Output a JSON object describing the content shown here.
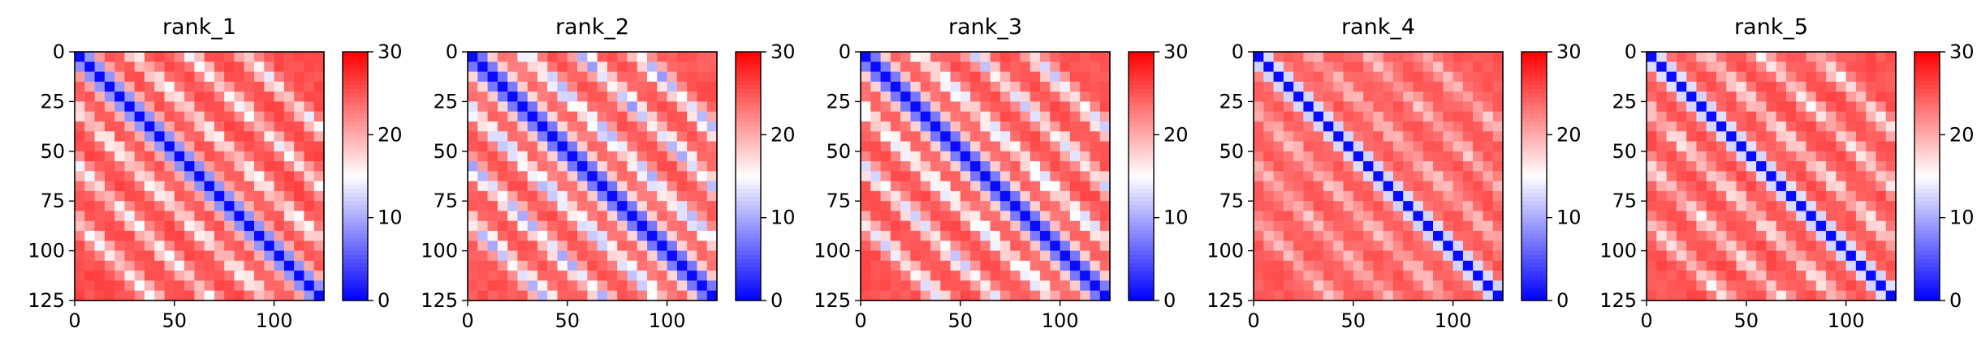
{
  "chart_data": [
    {
      "type": "heatmap",
      "title": "rank_1",
      "xlim": [
        0,
        125
      ],
      "ylim": [
        125,
        0
      ],
      "xticks": [
        0,
        50,
        100
      ],
      "yticks": [
        0,
        25,
        50,
        75,
        100,
        125
      ],
      "colorbar": {
        "range": [
          0,
          30
        ],
        "ticks": [
          0,
          10,
          20,
          30
        ],
        "colors": [
          "#0000ff",
          "#ffffff",
          "#ff0000"
        ]
      },
      "diagonal_band": 8,
      "contact_bands": [
        28,
        56,
        84
      ],
      "contact_strength": 0.55,
      "background": 0.88
    },
    {
      "type": "heatmap",
      "title": "rank_2",
      "xlim": [
        0,
        125
      ],
      "ylim": [
        125,
        0
      ],
      "xticks": [
        0,
        50,
        100
      ],
      "yticks": [
        0,
        25,
        50,
        75,
        100,
        125
      ],
      "colorbar": {
        "range": [
          0,
          30
        ],
        "ticks": [
          0,
          10,
          20,
          30
        ],
        "colors": [
          "#0000ff",
          "#ffffff",
          "#ff0000"
        ]
      },
      "diagonal_band": 9,
      "contact_bands": [
        28,
        56,
        84
      ],
      "contact_strength": 0.75,
      "background": 0.86
    },
    {
      "type": "heatmap",
      "title": "rank_3",
      "xlim": [
        0,
        125
      ],
      "ylim": [
        125,
        0
      ],
      "xticks": [
        0,
        50,
        100
      ],
      "yticks": [
        0,
        25,
        50,
        75,
        100,
        125
      ],
      "colorbar": {
        "range": [
          0,
          30
        ],
        "ticks": [
          0,
          10,
          20,
          30
        ],
        "colors": [
          "#0000ff",
          "#ffffff",
          "#ff0000"
        ]
      },
      "diagonal_band": 9,
      "contact_bands": [
        28,
        56,
        84
      ],
      "contact_strength": 0.65,
      "background": 0.87
    },
    {
      "type": "heatmap",
      "title": "rank_4",
      "xlim": [
        0,
        125
      ],
      "ylim": [
        125,
        0
      ],
      "xticks": [
        0,
        50,
        100
      ],
      "yticks": [
        0,
        25,
        50,
        75,
        100,
        125
      ],
      "colorbar": {
        "range": [
          0,
          30
        ],
        "ticks": [
          0,
          10,
          20,
          30
        ],
        "colors": [
          "#0000ff",
          "#ffffff",
          "#ff0000"
        ]
      },
      "diagonal_band": 6,
      "contact_bands": [
        28,
        56,
        84
      ],
      "contact_strength": 0.3,
      "background": 0.85
    },
    {
      "type": "heatmap",
      "title": "rank_5",
      "xlim": [
        0,
        125
      ],
      "ylim": [
        125,
        0
      ],
      "xticks": [
        0,
        50,
        100
      ],
      "yticks": [
        0,
        25,
        50,
        75,
        100,
        125
      ],
      "colorbar": {
        "range": [
          0,
          30
        ],
        "ticks": [
          0,
          10,
          20,
          30
        ],
        "colors": [
          "#0000ff",
          "#ffffff",
          "#ff0000"
        ]
      },
      "diagonal_band": 6,
      "contact_bands": [
        28,
        56,
        84
      ],
      "contact_strength": 0.45,
      "background": 0.87
    }
  ]
}
